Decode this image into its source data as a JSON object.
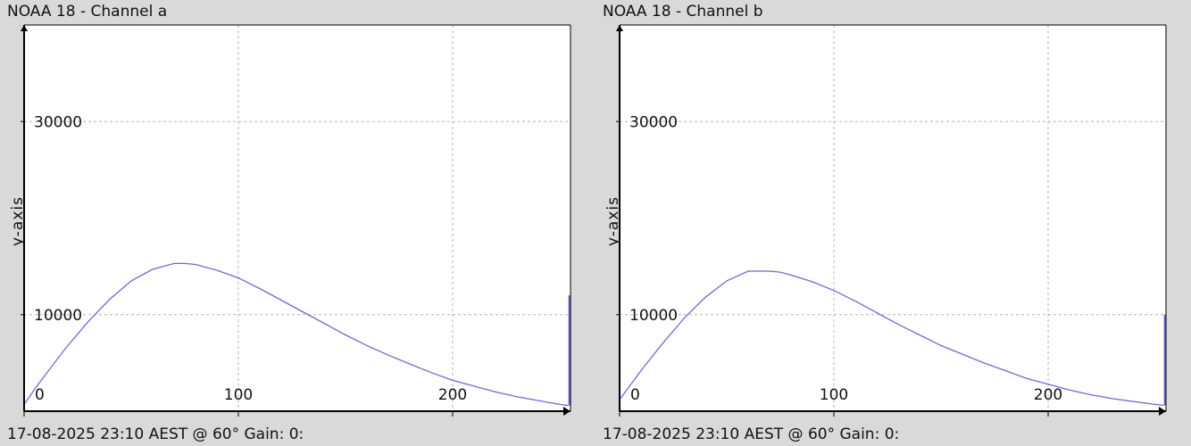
{
  "chart_data": [
    {
      "type": "line",
      "title": "NOAA 18 - Channel a",
      "footer": "17-08-2025 23:10 AEST @ 60° Gain: 0:",
      "ylabel": "y-axis",
      "xlabel": "",
      "xlim": [
        0,
        255
      ],
      "ylim": [
        0,
        40000
      ],
      "xticks": [
        0,
        100,
        200
      ],
      "yticks": [
        10000,
        30000
      ],
      "grid": true,
      "line_color": "#6b6bd6",
      "series": [
        {
          "x": [
            0,
            5,
            10,
            20,
            30,
            40,
            50,
            60,
            70,
            75,
            80,
            90,
            100,
            110,
            120,
            130,
            140,
            150,
            160,
            170,
            180,
            190,
            200,
            210,
            220,
            230,
            240,
            250,
            254
          ],
          "y": [
            700,
            2300,
            3800,
            6700,
            9300,
            11600,
            13500,
            14700,
            15300,
            15300,
            15200,
            14600,
            13800,
            12700,
            11500,
            10300,
            9100,
            7900,
            6800,
            5800,
            4900,
            4000,
            3200,
            2600,
            2000,
            1500,
            1100,
            700,
            600
          ]
        }
      ],
      "end_spike_y": 12000
    },
    {
      "type": "line",
      "title": "NOAA 18 - Channel b",
      "footer": "17-08-2025 23:10 AEST @ 60° Gain: 0:",
      "ylabel": "y-axis",
      "xlabel": "",
      "xlim": [
        0,
        255
      ],
      "ylim": [
        0,
        40000
      ],
      "xticks": [
        0,
        100,
        200
      ],
      "yticks": [
        10000,
        30000
      ],
      "grid": true,
      "line_color": "#6b6bd6",
      "series": [
        {
          "x": [
            0,
            5,
            10,
            20,
            30,
            40,
            50,
            60,
            70,
            75,
            80,
            90,
            100,
            110,
            120,
            130,
            140,
            150,
            160,
            170,
            180,
            190,
            200,
            210,
            220,
            230,
            240,
            250,
            254
          ],
          "y": [
            1200,
            2700,
            4200,
            7000,
            9600,
            11800,
            13500,
            14500,
            14500,
            14400,
            14100,
            13400,
            12500,
            11400,
            10200,
            9000,
            7900,
            6800,
            5900,
            5000,
            4200,
            3400,
            2800,
            2200,
            1700,
            1300,
            1000,
            700,
            600
          ]
        }
      ],
      "end_spike_y": 10000
    }
  ]
}
